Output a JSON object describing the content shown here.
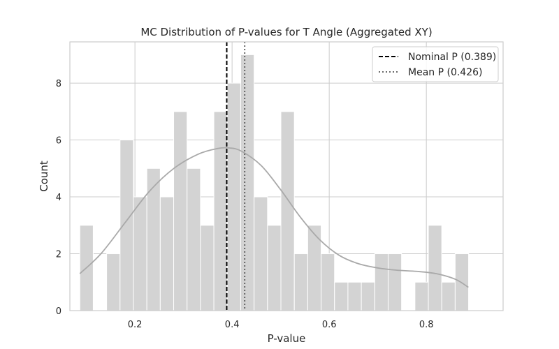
{
  "chart_data": {
    "type": "bar",
    "title": "MC Distribution of P-values for T Angle (Aggregated XY)",
    "xlabel": "P-value",
    "ylabel": "Count",
    "xlim": [
      0.066,
      0.958
    ],
    "ylim": [
      0,
      9.45
    ],
    "xticks": [
      0.2,
      0.4,
      0.6,
      0.8
    ],
    "yticks": [
      0,
      2,
      4,
      6,
      8
    ],
    "grid": true,
    "legend_position": "top-right",
    "bin_start": 0.0865,
    "bin_width": 0.0276,
    "counts": [
      3,
      0,
      2,
      6,
      4,
      5,
      4,
      7,
      5,
      3,
      7,
      8,
      9,
      4,
      3,
      7,
      2,
      3,
      2,
      1,
      1,
      1,
      2,
      2,
      0,
      1,
      3,
      1,
      2
    ],
    "kde": {
      "name": "KDE",
      "x": [
        0.0865,
        0.13,
        0.18,
        0.23,
        0.28,
        0.33,
        0.37,
        0.395,
        0.42,
        0.46,
        0.5,
        0.54,
        0.58,
        0.62,
        0.66,
        0.7,
        0.74,
        0.78,
        0.82,
        0.86,
        0.8865
      ],
      "y": [
        1.3,
        2.0,
        3.1,
        4.2,
        5.0,
        5.5,
        5.7,
        5.72,
        5.6,
        5.1,
        4.25,
        3.3,
        2.5,
        1.95,
        1.65,
        1.5,
        1.42,
        1.38,
        1.3,
        1.1,
        0.82
      ]
    },
    "vlines": [
      {
        "label": "Nominal P (0.389)",
        "x": 0.389,
        "style": "dashed",
        "color": "#000000"
      },
      {
        "label": "Mean P (0.426)",
        "x": 0.426,
        "style": "dotted",
        "color": "#555555"
      }
    ],
    "colors": {
      "bar": "#d3d3d3",
      "kde": "#a9a9a9",
      "grid": "#cccccc",
      "axes": "#cccccc"
    }
  }
}
